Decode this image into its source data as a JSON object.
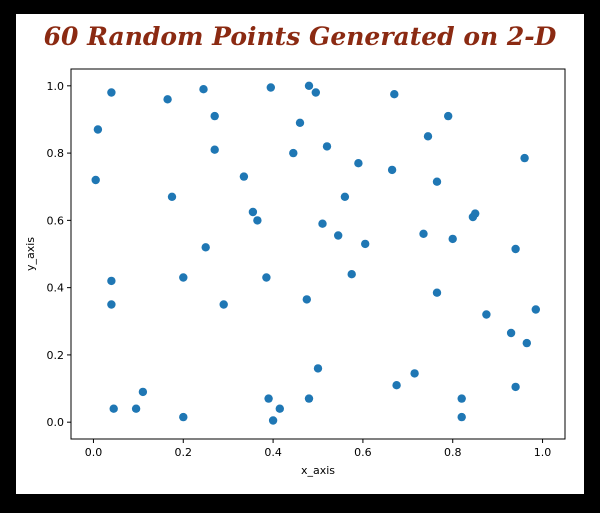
{
  "chart_data": {
    "type": "scatter",
    "title": "60 Random Points Generated on 2-D",
    "title_color": "#8b2a12",
    "xlabel": "x_axis",
    "ylabel": "y_axis",
    "xlim": [
      -0.05,
      1.05
    ],
    "ylim": [
      -0.05,
      1.05
    ],
    "xticks": [
      "0.0",
      "0.2",
      "0.4",
      "0.6",
      "0.8",
      "1.0"
    ],
    "yticks": [
      "0.0",
      "0.2",
      "0.4",
      "0.6",
      "0.8",
      "1.0"
    ],
    "grid": false,
    "marker_color": "#1f77b4",
    "series": [
      {
        "points": [
          [
            0.005,
            0.72
          ],
          [
            0.01,
            0.87
          ],
          [
            0.04,
            0.98
          ],
          [
            0.04,
            0.42
          ],
          [
            0.04,
            0.35
          ],
          [
            0.045,
            0.04
          ],
          [
            0.095,
            0.04
          ],
          [
            0.11,
            0.09
          ],
          [
            0.165,
            0.96
          ],
          [
            0.175,
            0.67
          ],
          [
            0.2,
            0.43
          ],
          [
            0.2,
            0.015
          ],
          [
            0.245,
            0.99
          ],
          [
            0.25,
            0.52
          ],
          [
            0.27,
            0.91
          ],
          [
            0.27,
            0.81
          ],
          [
            0.29,
            0.35
          ],
          [
            0.335,
            0.73
          ],
          [
            0.355,
            0.625
          ],
          [
            0.365,
            0.6
          ],
          [
            0.385,
            0.43
          ],
          [
            0.39,
            0.07
          ],
          [
            0.395,
            0.995
          ],
          [
            0.4,
            0.005
          ],
          [
            0.415,
            0.04
          ],
          [
            0.445,
            0.8
          ],
          [
            0.46,
            0.89
          ],
          [
            0.475,
            0.365
          ],
          [
            0.48,
            0.07
          ],
          [
            0.48,
            1.0
          ],
          [
            0.495,
            0.98
          ],
          [
            0.5,
            0.16
          ],
          [
            0.51,
            0.59
          ],
          [
            0.52,
            0.82
          ],
          [
            0.545,
            0.555
          ],
          [
            0.56,
            0.67
          ],
          [
            0.575,
            0.44
          ],
          [
            0.59,
            0.77
          ],
          [
            0.605,
            0.53
          ],
          [
            0.665,
            0.75
          ],
          [
            0.67,
            0.975
          ],
          [
            0.675,
            0.11
          ],
          [
            0.715,
            0.145
          ],
          [
            0.735,
            0.56
          ],
          [
            0.745,
            0.85
          ],
          [
            0.765,
            0.385
          ],
          [
            0.765,
            0.715
          ],
          [
            0.79,
            0.91
          ],
          [
            0.8,
            0.545
          ],
          [
            0.82,
            0.07
          ],
          [
            0.82,
            0.015
          ],
          [
            0.845,
            0.61
          ],
          [
            0.85,
            0.62
          ],
          [
            0.875,
            0.32
          ],
          [
            0.93,
            0.265
          ],
          [
            0.94,
            0.105
          ],
          [
            0.94,
            0.515
          ],
          [
            0.96,
            0.785
          ],
          [
            0.965,
            0.235
          ],
          [
            0.985,
            0.335
          ]
        ]
      }
    ]
  }
}
